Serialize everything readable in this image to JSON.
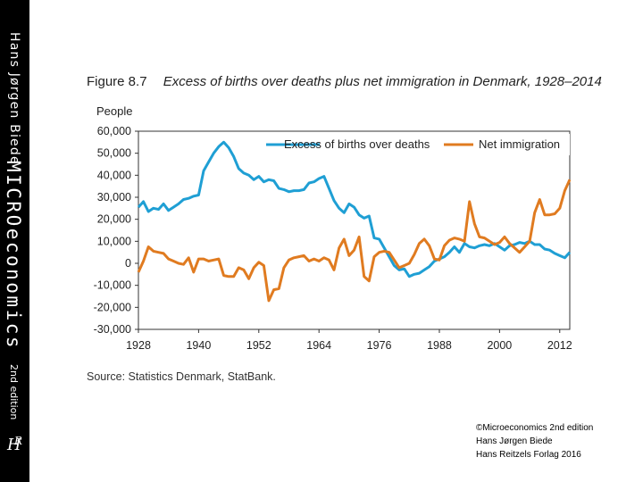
{
  "sidebar": {
    "author": "Hans Jørgen Biede",
    "title": "MICROeconomics",
    "edition": "2nd edition",
    "logo_text": "HR"
  },
  "figure": {
    "number": "Figure 8.7",
    "title": "Excess of births over deaths plus net immigration in Denmark, 1928–2014"
  },
  "source": "Source: Statistics Denmark, StatBank.",
  "credits": [
    "©Microeconomics 2nd edition",
    "Hans Jørgen Biede",
    "Hans Reitzels Forlag 2016"
  ],
  "colors": {
    "births": "#1f9fd4",
    "immigration": "#e07b20",
    "sidebar": "#000000"
  },
  "chart_data": {
    "type": "line",
    "title": "Excess of births over deaths plus net immigration in Denmark, 1928–2014",
    "ylabel": "People",
    "xlabel": "",
    "xlim": [
      1928,
      2014
    ],
    "ylim": [
      -30000,
      60000
    ],
    "x_ticks": [
      "1928",
      "1940",
      "1952",
      "1964",
      "1976",
      "1988",
      "2000",
      "2012"
    ],
    "x_tick_values": [
      1928,
      1940,
      1952,
      1964,
      1976,
      1988,
      2000,
      2012
    ],
    "y_ticks": [
      "60,000",
      "50,000",
      "40,000",
      "30,000",
      "20,000",
      "10,000",
      "0",
      "-10,000",
      "-20,000",
      "-30,000"
    ],
    "y_tick_values": [
      60000,
      50000,
      40000,
      30000,
      20000,
      10000,
      0,
      -10000,
      -20000,
      -30000
    ],
    "legend_position": "top-right",
    "x": [
      1928,
      1929,
      1930,
      1931,
      1932,
      1933,
      1934,
      1935,
      1936,
      1937,
      1938,
      1939,
      1940,
      1941,
      1942,
      1943,
      1944,
      1945,
      1946,
      1947,
      1948,
      1949,
      1950,
      1951,
      1952,
      1953,
      1954,
      1955,
      1956,
      1957,
      1958,
      1959,
      1960,
      1961,
      1962,
      1963,
      1964,
      1965,
      1966,
      1967,
      1968,
      1969,
      1970,
      1971,
      1972,
      1973,
      1974,
      1975,
      1976,
      1977,
      1978,
      1979,
      1980,
      1981,
      1982,
      1983,
      1984,
      1985,
      1986,
      1987,
      1988,
      1989,
      1990,
      1991,
      1992,
      1993,
      1994,
      1995,
      1996,
      1997,
      1998,
      1999,
      2000,
      2001,
      2002,
      2003,
      2004,
      2005,
      2006,
      2007,
      2008,
      2009,
      2010,
      2011,
      2012,
      2013,
      2014
    ],
    "series": [
      {
        "name": "Excess of births over deaths",
        "color": "#1f9fd4",
        "values": [
          25500,
          28000,
          23500,
          25000,
          24500,
          27000,
          24000,
          25500,
          27000,
          29000,
          29500,
          30500,
          31000,
          42000,
          46000,
          50000,
          53000,
          55000,
          52500,
          48500,
          43000,
          41000,
          40000,
          38000,
          39500,
          37000,
          38000,
          37500,
          34000,
          33500,
          32500,
          33000,
          33000,
          33500,
          36500,
          37000,
          38500,
          39500,
          34000,
          28500,
          25000,
          23000,
          27000,
          25500,
          22000,
          20500,
          21500,
          11500,
          11000,
          7000,
          3000,
          -1000,
          -3000,
          -2500,
          -6000,
          -5000,
          -4500,
          -3000,
          -1500,
          1000,
          2000,
          3000,
          5000,
          7500,
          5000,
          9000,
          7500,
          7000,
          8000,
          8500,
          8000,
          9000,
          7500,
          6000,
          8000,
          8500,
          9500,
          9000,
          10000,
          8500,
          8500,
          6500,
          6000,
          4500,
          3500,
          2500,
          5000
        ]
      },
      {
        "name": "Net immigration",
        "color": "#e07b20",
        "values": [
          -4000,
          1000,
          7500,
          5500,
          5000,
          4500,
          2000,
          1000,
          0,
          -500,
          2500,
          -4000,
          2000,
          2000,
          1000,
          1500,
          2000,
          -5500,
          -6000,
          -6000,
          -2000,
          -3000,
          -7000,
          -2000,
          500,
          -1000,
          -17000,
          -12000,
          -11500,
          -2000,
          1500,
          2500,
          3000,
          3500,
          1000,
          2000,
          1000,
          2500,
          1500,
          -3000,
          7000,
          11000,
          3500,
          6000,
          12000,
          -6000,
          -8000,
          3000,
          5000,
          5500,
          5000,
          1500,
          -2000,
          -1000,
          0,
          4000,
          9000,
          11000,
          8000,
          2000,
          1500,
          8000,
          10500,
          11500,
          11000,
          10000,
          28000,
          18000,
          12000,
          11500,
          10000,
          8500,
          9500,
          12000,
          9000,
          7000,
          5000,
          7500,
          10000,
          23000,
          29000,
          22000,
          22000,
          22500,
          25000,
          33000,
          38000
        ]
      }
    ]
  }
}
